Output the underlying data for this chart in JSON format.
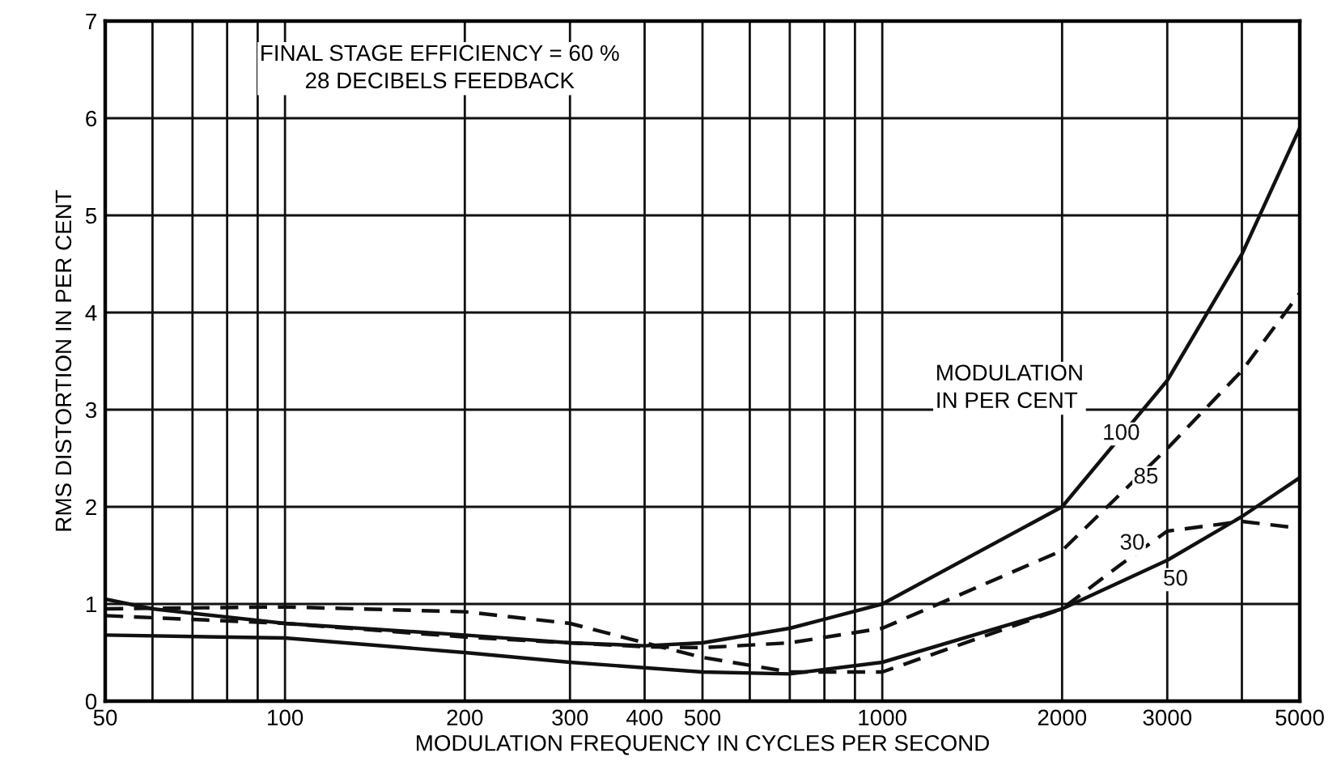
{
  "chart_data": {
    "type": "line",
    "xlabel": "MODULATION FREQUENCY IN CYCLES PER SECOND",
    "ylabel": "RMS DISTORTION IN PER CENT",
    "log": "x",
    "xlim": [
      50,
      5000
    ],
    "ylim": [
      0,
      7
    ],
    "xticks": [
      50,
      {
        "value": 60,
        "label": null
      },
      {
        "value": 70,
        "label": null
      },
      {
        "value": 80,
        "label": null
      },
      {
        "value": 90,
        "label": null
      },
      100,
      200,
      300,
      400,
      500,
      {
        "value": 600,
        "label": null
      },
      {
        "value": 700,
        "label": null
      },
      {
        "value": 800,
        "label": null
      },
      {
        "value": 900,
        "label": null
      },
      1000,
      2000,
      3000,
      {
        "value": 4000,
        "label": null
      },
      5000
    ],
    "yticks": [
      0,
      1,
      2,
      3,
      4,
      5,
      6,
      7
    ],
    "grid": true,
    "legend": false,
    "annotations": [
      "FINAL STAGE EFFICIENCY = 60 %\n28 DECIBELS FEEDBACK",
      "MODULATION\nIN PER CENT"
    ],
    "series": [
      {
        "name": "100",
        "color": "#111111",
        "line_style": "solid",
        "x": [
          50,
          60,
          100,
          200,
          300,
          400,
          500,
          700,
          1000,
          2000,
          3000,
          4000,
          5000
        ],
        "values": [
          1.05,
          0.95,
          0.8,
          0.68,
          0.6,
          0.57,
          0.6,
          0.75,
          1.0,
          2.0,
          3.3,
          4.6,
          5.9
        ]
      },
      {
        "name": "85",
        "color": "#111111",
        "line_style": "dashed",
        "x": [
          50,
          100,
          200,
          300,
          400,
          500,
          700,
          1000,
          2000,
          3000,
          4000,
          5000
        ],
        "values": [
          0.88,
          0.8,
          0.66,
          0.6,
          0.56,
          0.55,
          0.6,
          0.75,
          1.55,
          2.6,
          3.4,
          4.2
        ]
      },
      {
        "name": "30",
        "color": "#111111",
        "line_style": "dashed",
        "x": [
          50,
          100,
          200,
          300,
          400,
          500,
          700,
          1000,
          2000,
          2500,
          3000,
          4000,
          5000
        ],
        "values": [
          0.95,
          0.97,
          0.92,
          0.8,
          0.6,
          0.45,
          0.3,
          0.3,
          0.95,
          1.4,
          1.75,
          1.85,
          1.78
        ]
      },
      {
        "name": "50",
        "color": "#111111",
        "line_style": "solid",
        "x": [
          50,
          100,
          200,
          300,
          500,
          700,
          1000,
          2000,
          3000,
          4000,
          5000
        ],
        "values": [
          0.68,
          0.65,
          0.5,
          0.4,
          0.3,
          0.28,
          0.4,
          0.95,
          1.45,
          1.9,
          2.3
        ]
      }
    ]
  }
}
